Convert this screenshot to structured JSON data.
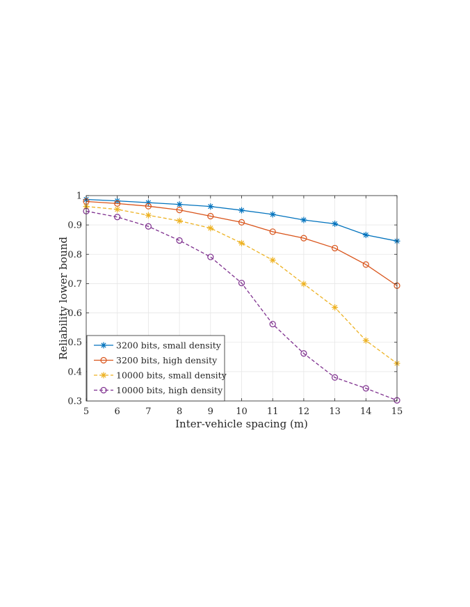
{
  "chart_data": {
    "type": "line",
    "title": "",
    "xlabel": "Inter-vehicle spacing (m)",
    "ylabel": "Reliability lower bound",
    "xlim": [
      5,
      15
    ],
    "ylim": [
      0.3,
      1
    ],
    "xticks": [
      5,
      6,
      7,
      8,
      9,
      10,
      11,
      12,
      13,
      14,
      15
    ],
    "yticks": [
      0.3,
      0.4,
      0.5,
      0.6,
      0.7,
      0.8,
      0.9,
      1
    ],
    "ytick_labels": [
      "0.3",
      "0.4",
      "0.5",
      "0.6",
      "0.7",
      "0.8",
      "0.9",
      "1"
    ],
    "grid": true,
    "legend_position": "bottom-left",
    "x": [
      5,
      6,
      7,
      8,
      9,
      10,
      11,
      12,
      13,
      14,
      15
    ],
    "series": [
      {
        "name": "3200 bits, small density",
        "color": "#0072BD",
        "marker": "asterisk",
        "linestyle": "solid",
        "values": [
          0.987,
          0.982,
          0.976,
          0.97,
          0.963,
          0.95,
          0.936,
          0.917,
          0.904,
          0.866,
          0.845
        ]
      },
      {
        "name": "3200 bits, high density",
        "color": "#D95319",
        "marker": "circle",
        "linestyle": "solid",
        "values": [
          0.98,
          0.973,
          0.964,
          0.951,
          0.93,
          0.909,
          0.877,
          0.855,
          0.821,
          0.765,
          0.693
        ]
      },
      {
        "name": "10000 bits, small density",
        "color": "#EDB120",
        "marker": "asterisk",
        "linestyle": "dashed",
        "values": [
          0.963,
          0.953,
          0.933,
          0.914,
          0.889,
          0.838,
          0.78,
          0.699,
          0.619,
          0.506,
          0.428
        ]
      },
      {
        "name": "10000 bits, high density",
        "color": "#7E2F8E",
        "marker": "circle",
        "linestyle": "dashed",
        "values": [
          0.947,
          0.927,
          0.895,
          0.847,
          0.791,
          0.702,
          0.562,
          0.462,
          0.38,
          0.343,
          0.302
        ]
      }
    ]
  }
}
